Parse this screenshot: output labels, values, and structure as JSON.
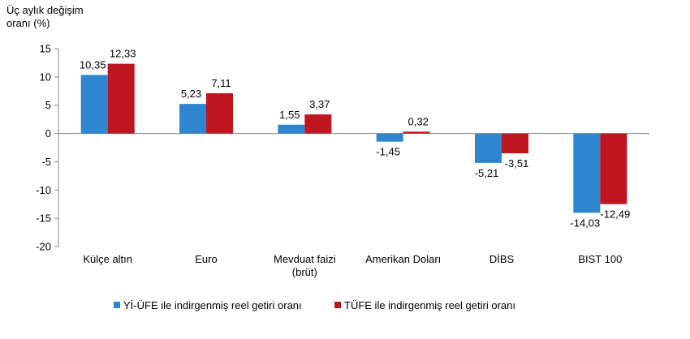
{
  "chart_data": {
    "type": "bar",
    "title": "",
    "ylabel_lines": [
      "Üç aylık değişim",
      "oranı (%)"
    ],
    "xlabel": "",
    "ylim": [
      -20,
      15
    ],
    "yticks": [
      15,
      10,
      5,
      0,
      -5,
      -10,
      -15,
      -20
    ],
    "categories": [
      [
        "Külçe altın"
      ],
      [
        "Euro"
      ],
      [
        "Mevduat faizi",
        "(brüt)"
      ],
      [
        "Amerikan Doları"
      ],
      [
        "DİBS"
      ],
      [
        "BIST 100"
      ]
    ],
    "series": [
      {
        "name": "Yİ-ÜFE ile indirgenmiş reel getiri oranı",
        "color": "#2e86d1",
        "values": [
          10.35,
          5.23,
          1.55,
          -1.45,
          -5.21,
          -14.03
        ],
        "labels": [
          "10,35",
          "5,23",
          "1,55",
          "-1,45",
          "-5,21",
          "-14,03"
        ]
      },
      {
        "name": "TÜFE ile indirgenmiş reel getiri oranı",
        "color": "#c0161f",
        "values": [
          12.33,
          7.11,
          3.37,
          0.32,
          -3.51,
          -12.49
        ],
        "labels": [
          "12,33",
          "7,11",
          "3,37",
          "0,32",
          "-3,51",
          "-12,49"
        ]
      }
    ],
    "grid": false,
    "legend_position": "bottom"
  }
}
